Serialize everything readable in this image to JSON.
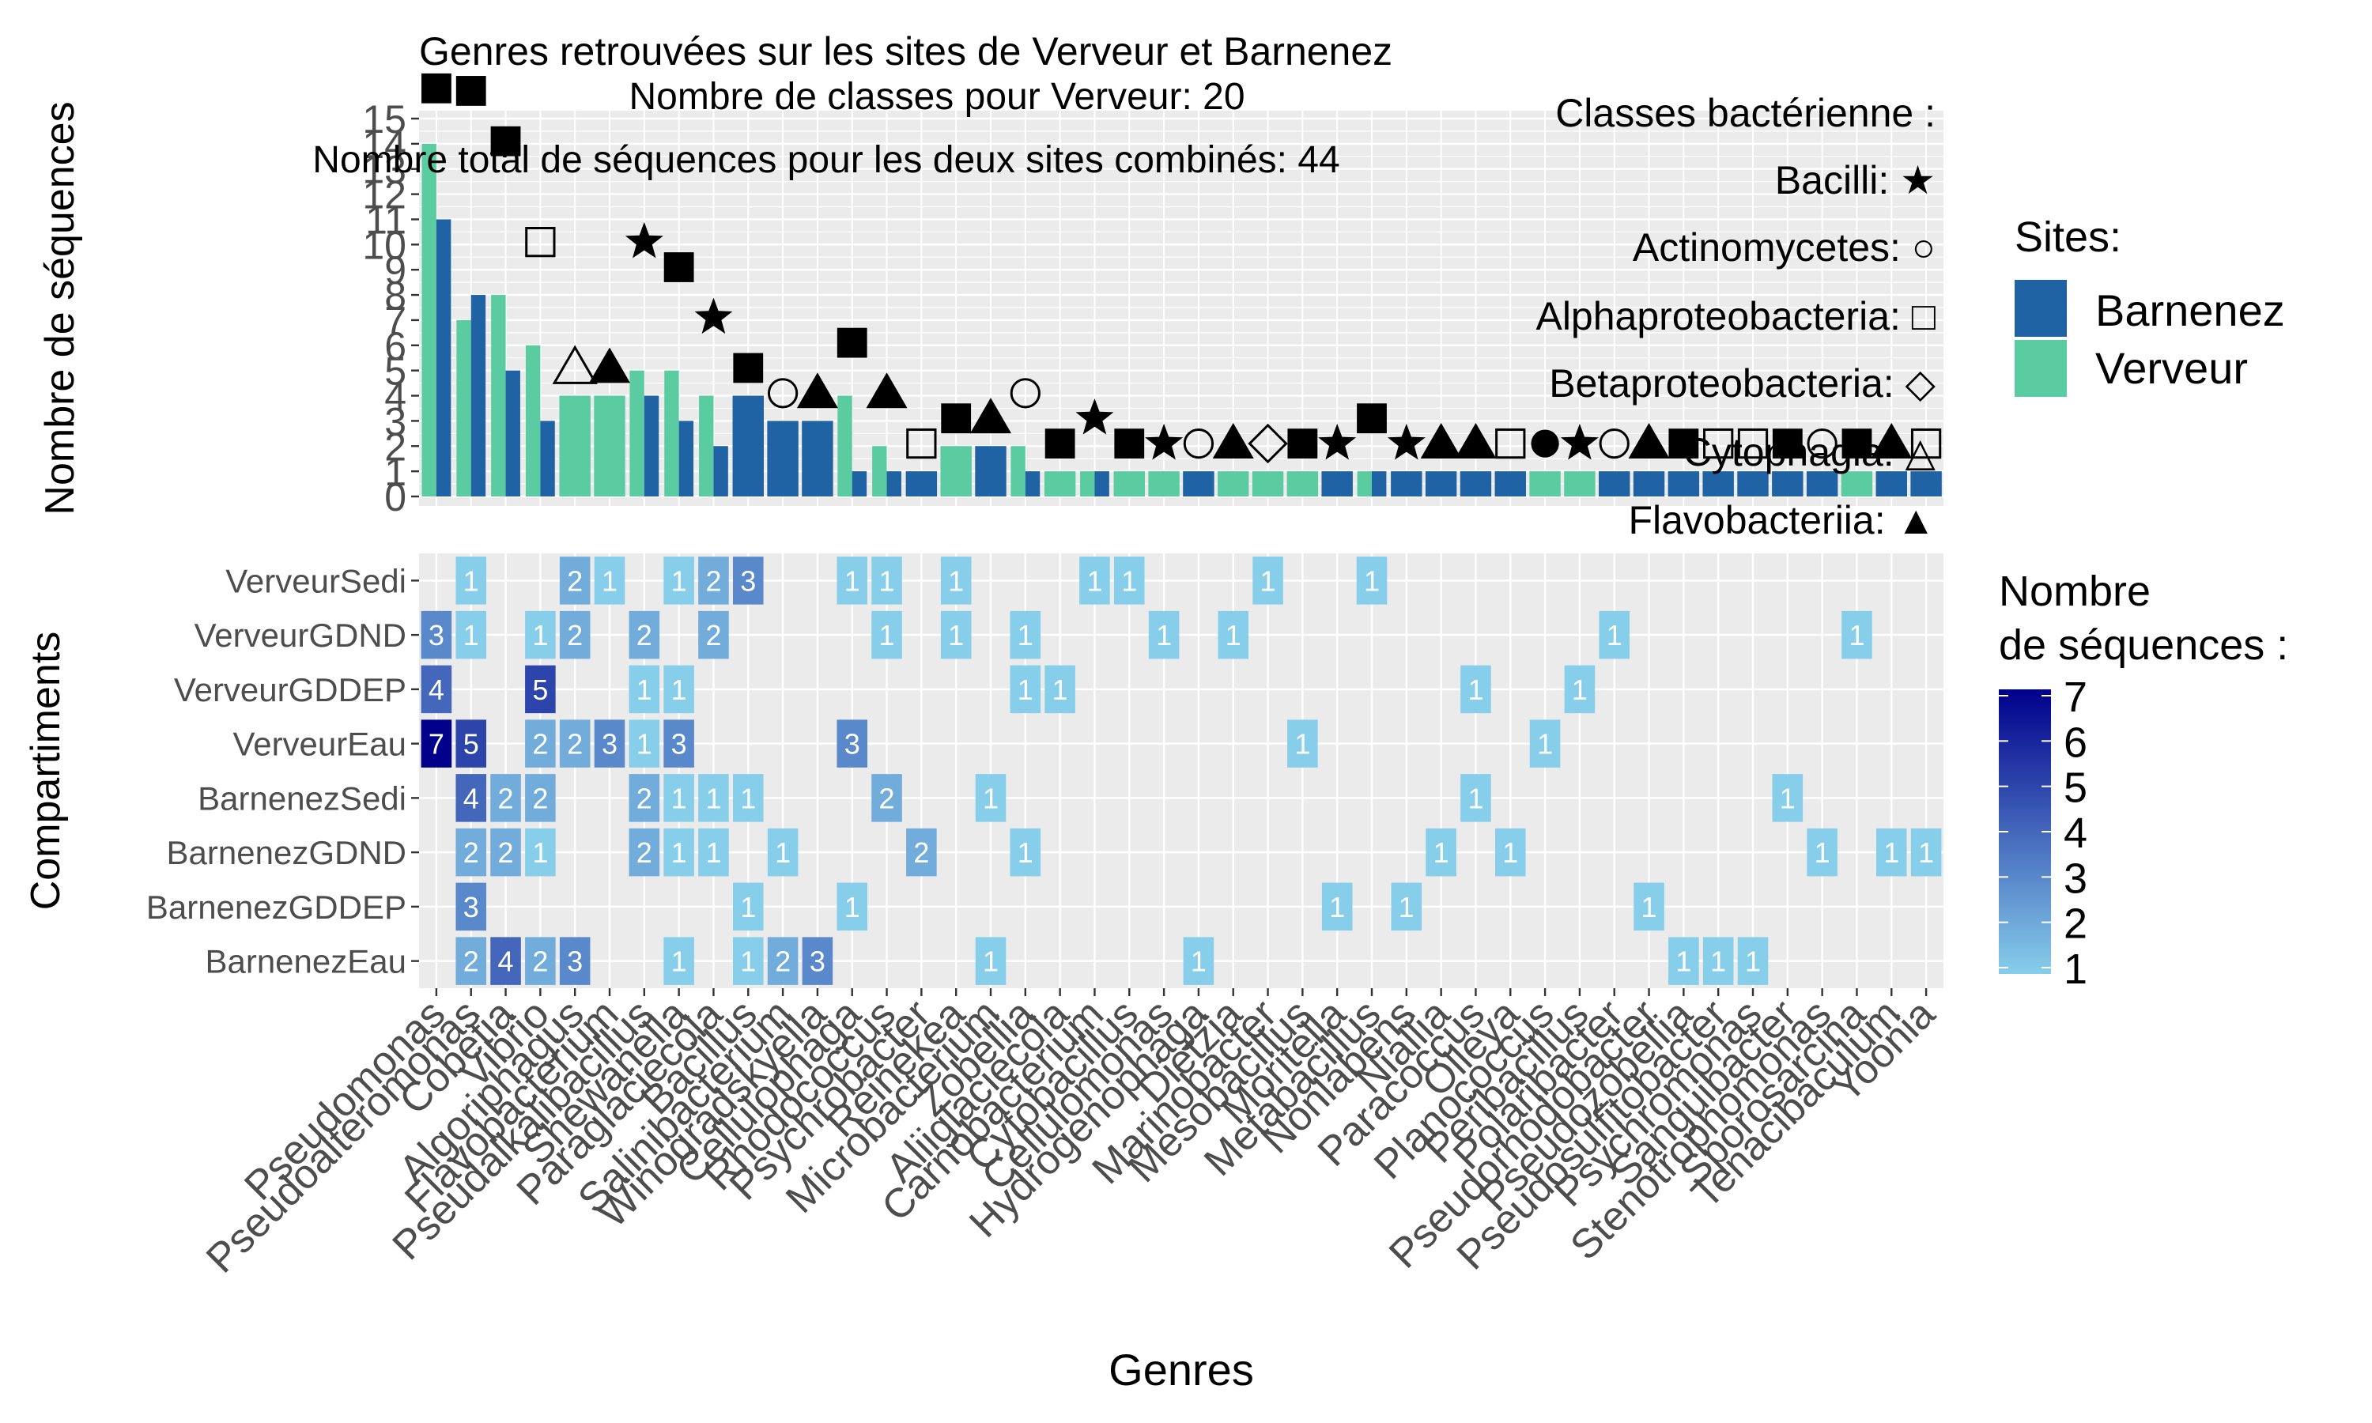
{
  "chart_data": [
    {
      "type": "bar",
      "title": "Genres retrouvées sur les sites de Verveur et Barnenez",
      "ylabel": "Nombre de séquences",
      "xlabel": "",
      "ylim": [
        0,
        15
      ],
      "y_ticks": [
        "0",
        "1",
        "2",
        "3",
        "4",
        "5",
        "6",
        "7",
        "8",
        "9",
        "10",
        "11",
        "12",
        "13",
        "14",
        "15"
      ],
      "annotations": {
        "classes_count": "Nombre de classes pour  Verveur: 20",
        "total": "Nombre total de séquences pour les deux sites combinés: 44"
      },
      "class_legend": [
        {
          "label": "Classes bactérienne :",
          "symbol": ""
        },
        {
          "label": "Bacilli: ★",
          "symbol": "star"
        },
        {
          "label": "Actinomycetes: ○",
          "symbol": "circle-open"
        },
        {
          "label": "Alphaproteobacteria: □",
          "symbol": "square-open"
        },
        {
          "label": "Betaproteobacteria: ◇",
          "symbol": "diamond-open"
        },
        {
          "label": "Cytophagia: △",
          "symbol": "triangle-open"
        },
        {
          "label": "Flavobacteriia: ▲",
          "symbol": "triangle"
        }
      ],
      "legend": {
        "title": "Sites:",
        "placement": "right",
        "items": [
          {
            "name": "Barnenez",
            "color": "#1F63A5"
          },
          {
            "name": "Verveur",
            "color": "#5BCBA1"
          }
        ]
      },
      "categories": [
        "Pseudomonas",
        "Pseudoalteromonas",
        "Cobetia",
        "Vibrio",
        "Algoriphagus",
        "Flavobacterium",
        "Pseudalkalibacillus",
        "Shewanella",
        "Paraglaciecola",
        "Bacillus",
        "Salinibacterium",
        "Winogradskyella",
        "Cellulophaga",
        "Rhodococcus",
        "Psychrobacter",
        "Reinekea",
        "Microbacterium",
        "Zobellia",
        "Aliiglaciecola",
        "Carnobacterium",
        "Cytobacillus",
        "Cellulomonas",
        "Hydrogenophaga",
        "Dietzia",
        "Marinobacter",
        "Mesobacillus",
        "Moritella",
        "Metabacillus",
        "Nonlabens",
        "Niallia",
        "Paracoccus",
        "Olleya",
        "Planococcus",
        "Peribacillus",
        "Polaribacter",
        "Pseudorhodobacter",
        "Pseudozobellia",
        "Pseudosulfitobacter",
        "Psychromonas",
        "Sanguibacter",
        "Stenotrophomonas",
        "Sporosarcina",
        "Tenacibaculum",
        "Yoonia"
      ],
      "class_symbol": [
        "square",
        "square",
        "square",
        "square-open",
        "triangle-open",
        "triangle",
        "star",
        "square",
        "star",
        "square",
        "circle-open",
        "triangle",
        "square",
        "triangle",
        "square-open",
        "square",
        "triangle",
        "circle-open",
        "square",
        "star",
        "square",
        "star",
        "circle-open",
        "triangle",
        "diamond-open",
        "square",
        "star",
        "square",
        "star",
        "triangle",
        "triangle",
        "square-open",
        "circle",
        "star",
        "circle-open",
        "triangle",
        "square",
        "square-open",
        "square-open",
        "square",
        "circle-open",
        "square",
        "triangle",
        "square-open"
      ],
      "series": [
        {
          "name": "Barnenez",
          "values": [
            11,
            8,
            5,
            3,
            0,
            0,
            4,
            3,
            2,
            4,
            3,
            3,
            1,
            1,
            1,
            0,
            2,
            1,
            0,
            1,
            0,
            0,
            1,
            0,
            0,
            0,
            1,
            1,
            1,
            1,
            1,
            1,
            0,
            0,
            1,
            1,
            1,
            1,
            1,
            1,
            1,
            0,
            1,
            1
          ]
        },
        {
          "name": "Verveur",
          "values": [
            14,
            7,
            8,
            6,
            4,
            4,
            5,
            5,
            4,
            0,
            0,
            0,
            4,
            2,
            0,
            2,
            0,
            2,
            1,
            1,
            1,
            1,
            0,
            1,
            1,
            1,
            0,
            1,
            0,
            0,
            0,
            0,
            1,
            1,
            0,
            0,
            0,
            0,
            0,
            0,
            0,
            1,
            0,
            0
          ]
        }
      ]
    },
    {
      "type": "heatmap",
      "xlabel": "Genres",
      "ylabel": "Compartiments",
      "rows": [
        "VerveurSedi",
        "VerveurGDND",
        "VerveurGDDEP",
        "VerveurEau",
        "BarnenezSedi",
        "BarnenezGDND",
        "BarnenezGDDEP",
        "BarnenezEau"
      ],
      "columns": [
        "Pseudomonas",
        "Pseudoalteromonas",
        "Cobetia",
        "Vibrio",
        "Algoriphagus",
        "Flavobacterium",
        "Pseudalkalibacillus",
        "Shewanella",
        "Paraglaciecola",
        "Bacillus",
        "Salinibacterium",
        "Winogradskyella",
        "Cellulophaga",
        "Rhodococcus",
        "Psychrobacter",
        "Reinekea",
        "Microbacterium",
        "Zobellia",
        "Aliiglaciecola",
        "Carnobacterium",
        "Cytobacillus",
        "Cellulomonas",
        "Hydrogenophaga",
        "Dietzia",
        "Marinobacter",
        "Mesobacillus",
        "Moritella",
        "Metabacillus",
        "Nonlabens",
        "Niallia",
        "Paracoccus",
        "Olleya",
        "Planococcus",
        "Peribacillus",
        "Polaribacter",
        "Pseudorhodobacter",
        "Pseudozobellia",
        "Pseudosulfitobacter",
        "Psychromonas",
        "Sanguibacter",
        "Stenotrophomonas",
        "Sporosarcina",
        "Tenacibaculum",
        "Yoonia"
      ],
      "cells": [
        [
          0,
          1,
          "1"
        ],
        [
          0,
          4,
          "2"
        ],
        [
          0,
          5,
          "1"
        ],
        [
          0,
          7,
          "1"
        ],
        [
          0,
          8,
          "2"
        ],
        [
          0,
          9,
          "3"
        ],
        [
          0,
          12,
          "1"
        ],
        [
          0,
          13,
          "1"
        ],
        [
          0,
          15,
          "1"
        ],
        [
          0,
          19,
          "1"
        ],
        [
          0,
          20,
          "1"
        ],
        [
          0,
          24,
          "1"
        ],
        [
          0,
          27,
          "1"
        ],
        [
          1,
          0,
          "3"
        ],
        [
          1,
          1,
          "1"
        ],
        [
          1,
          3,
          "1"
        ],
        [
          1,
          4,
          "2"
        ],
        [
          1,
          6,
          "2"
        ],
        [
          1,
          8,
          "2"
        ],
        [
          1,
          13,
          "1"
        ],
        [
          1,
          15,
          "1"
        ],
        [
          1,
          17,
          "1"
        ],
        [
          1,
          21,
          "1"
        ],
        [
          1,
          23,
          "1"
        ],
        [
          1,
          34,
          "1"
        ],
        [
          1,
          41,
          "1"
        ],
        [
          2,
          0,
          "4"
        ],
        [
          2,
          3,
          "5"
        ],
        [
          2,
          6,
          "1"
        ],
        [
          2,
          7,
          "1"
        ],
        [
          2,
          17,
          "1"
        ],
        [
          2,
          18,
          "1"
        ],
        [
          2,
          30,
          "1"
        ],
        [
          2,
          33,
          "1"
        ],
        [
          3,
          0,
          "7"
        ],
        [
          3,
          1,
          "5"
        ],
        [
          3,
          3,
          "2"
        ],
        [
          3,
          4,
          "2"
        ],
        [
          3,
          5,
          "3"
        ],
        [
          3,
          6,
          "1"
        ],
        [
          3,
          7,
          "3"
        ],
        [
          3,
          12,
          "3"
        ],
        [
          3,
          25,
          "1"
        ],
        [
          3,
          32,
          "1"
        ],
        [
          4,
          1,
          "4"
        ],
        [
          4,
          2,
          "2"
        ],
        [
          4,
          3,
          "2"
        ],
        [
          4,
          6,
          "2"
        ],
        [
          4,
          7,
          "1"
        ],
        [
          4,
          8,
          "1"
        ],
        [
          4,
          9,
          "1"
        ],
        [
          4,
          13,
          "2"
        ],
        [
          4,
          16,
          "1"
        ],
        [
          4,
          30,
          "1"
        ],
        [
          4,
          39,
          "1"
        ],
        [
          5,
          1,
          "2"
        ],
        [
          5,
          2,
          "2"
        ],
        [
          5,
          3,
          "1"
        ],
        [
          5,
          6,
          "2"
        ],
        [
          5,
          7,
          "1"
        ],
        [
          5,
          8,
          "1"
        ],
        [
          5,
          10,
          "1"
        ],
        [
          5,
          14,
          "2"
        ],
        [
          5,
          17,
          "1"
        ],
        [
          5,
          29,
          "1"
        ],
        [
          5,
          31,
          "1"
        ],
        [
          5,
          40,
          "1"
        ],
        [
          5,
          42,
          "1"
        ],
        [
          5,
          43,
          "1"
        ],
        [
          6,
          1,
          "3"
        ],
        [
          6,
          9,
          "1"
        ],
        [
          6,
          12,
          "1"
        ],
        [
          6,
          26,
          "1"
        ],
        [
          6,
          28,
          "1"
        ],
        [
          6,
          35,
          "1"
        ],
        [
          7,
          1,
          "2"
        ],
        [
          7,
          2,
          "4"
        ],
        [
          7,
          3,
          "2"
        ],
        [
          7,
          4,
          "3"
        ],
        [
          7,
          7,
          "1"
        ],
        [
          7,
          9,
          "1"
        ],
        [
          7,
          10,
          "2"
        ],
        [
          7,
          11,
          "3"
        ],
        [
          7,
          16,
          "1"
        ],
        [
          7,
          22,
          "1"
        ],
        [
          7,
          36,
          "1"
        ],
        [
          7,
          37,
          "1"
        ],
        [
          7,
          38,
          "1"
        ]
      ],
      "color_scale": {
        "title_line1": "Nombre",
        "title_line2": "de séquences :",
        "min": 1,
        "max": 7,
        "low": "#87CEEB",
        "high": "#00008B",
        "ticks": [
          "1",
          "2",
          "3",
          "4",
          "5",
          "6",
          "7"
        ]
      }
    }
  ]
}
